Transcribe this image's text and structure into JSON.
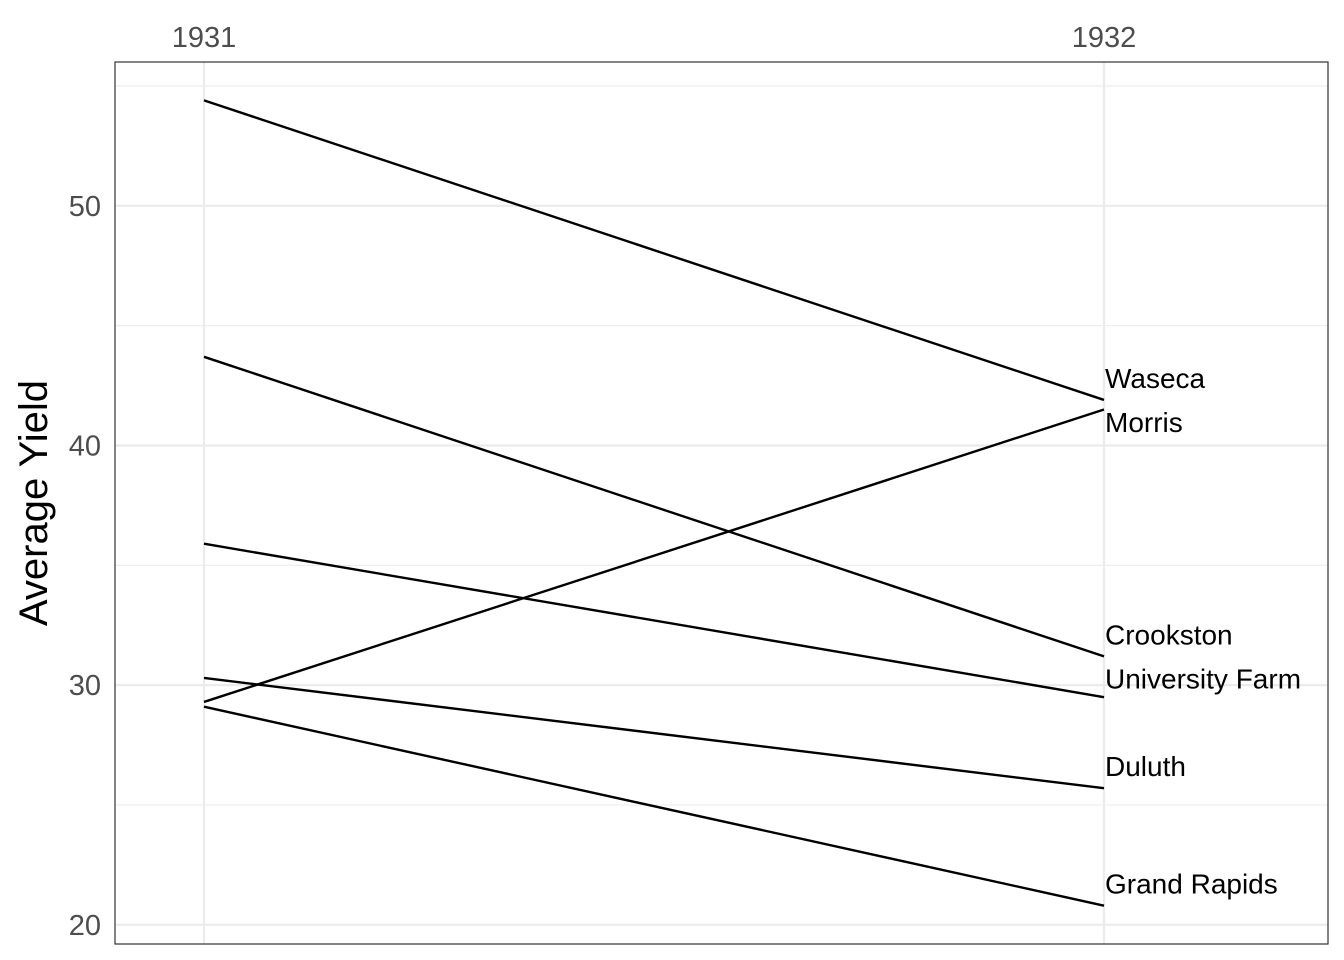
{
  "chart_data": {
    "type": "line",
    "title": "",
    "xlabel": "",
    "ylabel": "Average Yield",
    "x": [
      "1931",
      "1932"
    ],
    "ylim": [
      19.2,
      56.0
    ],
    "yticks": [
      20,
      30,
      40,
      50
    ],
    "grid": true,
    "legend": "none",
    "series": [
      {
        "name": "Waseca",
        "values": [
          54.4,
          41.9
        ]
      },
      {
        "name": "Morris",
        "values": [
          29.3,
          41.5
        ]
      },
      {
        "name": "Crookston",
        "values": [
          43.7,
          31.2
        ]
      },
      {
        "name": "University Farm",
        "values": [
          35.9,
          29.5
        ]
      },
      {
        "name": "Duluth",
        "values": [
          30.3,
          25.7
        ]
      },
      {
        "name": "Grand Rapids",
        "values": [
          29.1,
          20.8
        ]
      }
    ]
  }
}
